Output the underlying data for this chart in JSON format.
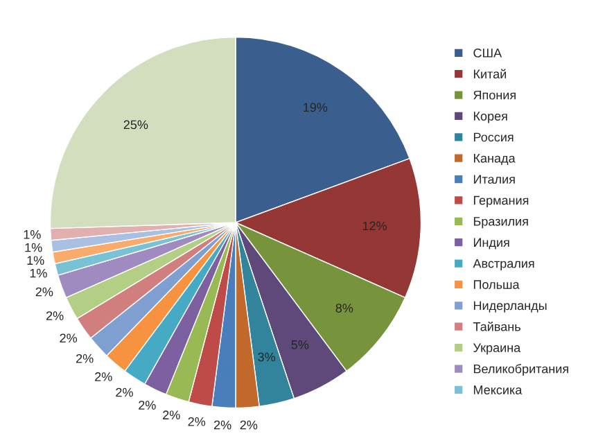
{
  "chart_data": {
    "type": "pie",
    "categories": [
      "США",
      "Китай",
      "Япония",
      "Корея",
      "Россия",
      "Канада",
      "Италия",
      "Германия",
      "Бразилия",
      "Индия",
      "Австралия",
      "Польша",
      "Нидерланды",
      "Тайвань",
      "Украина",
      "Великобритания",
      "Мексика",
      null,
      null,
      null,
      null
    ],
    "values": [
      19,
      12,
      8,
      5,
      3,
      2,
      2,
      2,
      2,
      2,
      2,
      2,
      2,
      2,
      2,
      2,
      1,
      1,
      1,
      1,
      25
    ],
    "colors": [
      "#3A5F8F",
      "#953735",
      "#77933C",
      "#5F497A",
      "#31849B",
      "#C0692B",
      "#4A7EBB",
      "#BE4B48",
      "#98B954",
      "#7D60A0",
      "#46AAC5",
      "#F69240",
      "#7F9FD0",
      "#D07F7E",
      "#B3CF85",
      "#A08BC0",
      "#79C2D6",
      "#F9AB6B",
      "#A9C0E2",
      "#E0AFAE",
      "#D3DEBF"
    ],
    "value_labels": [
      "19%",
      "12%",
      "8%",
      "5%",
      "3%",
      "2%",
      "2%",
      "2%",
      "2%",
      "2%",
      "2%",
      "2%",
      "2%",
      "2%",
      "2%",
      "2%",
      "1%",
      "1%",
      "1%",
      "1%",
      "25%"
    ],
    "legend": "right"
  }
}
